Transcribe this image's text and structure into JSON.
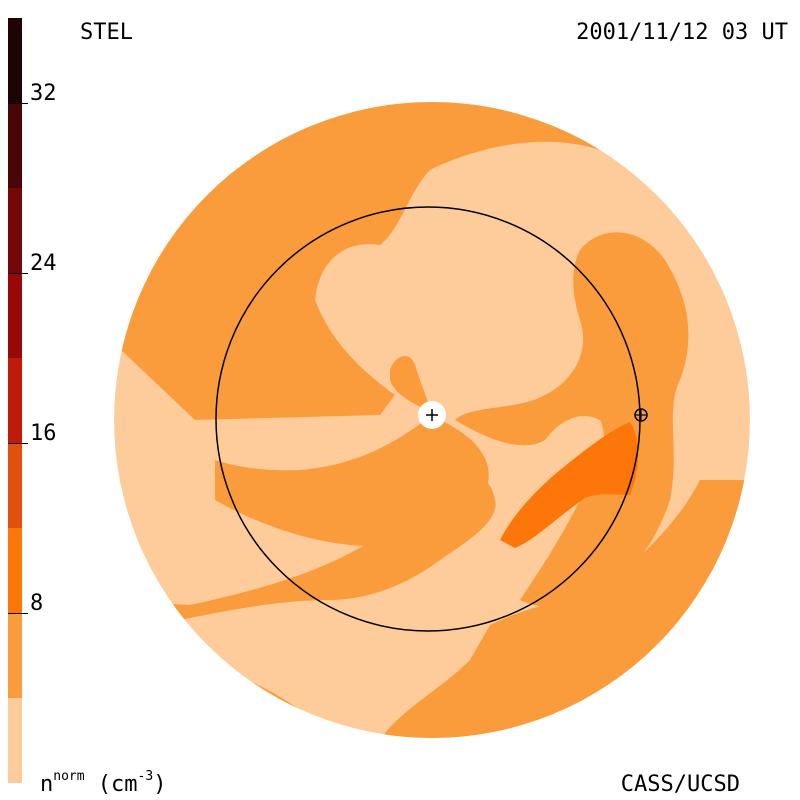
{
  "header": {
    "source": "STEL",
    "timestamp": "2001/11/12 03 UT"
  },
  "footer": {
    "unit_base": "n",
    "unit_sup": "norm",
    "unit_rest": " (cm",
    "unit_exp": "-3",
    "unit_close": ")",
    "credit": "CASS/UCSD"
  },
  "chart_data": {
    "type": "heatmap",
    "title": "",
    "colorbar": {
      "range": [
        0,
        36
      ],
      "ticks": [
        {
          "value": 8,
          "label": "8"
        },
        {
          "value": 16,
          "label": "16"
        },
        {
          "value": 24,
          "label": "24"
        },
        {
          "value": 32,
          "label": "32"
        }
      ],
      "levels": [
        {
          "from": 0,
          "to": 4,
          "color": "#fdcc9a"
        },
        {
          "from": 4,
          "to": 8,
          "color": "#fb9c3c"
        },
        {
          "from": 8,
          "to": 12,
          "color": "#fd760a"
        },
        {
          "from": 12,
          "to": 16,
          "color": "#e34f0c"
        },
        {
          "from": 16,
          "to": 20,
          "color": "#bf1a0a"
        },
        {
          "from": 20,
          "to": 24,
          "color": "#990808"
        },
        {
          "from": 24,
          "to": 28,
          "color": "#740808"
        },
        {
          "from": 28,
          "to": 32,
          "color": "#4a0606"
        },
        {
          "from": 32,
          "to": 36,
          "color": "#1e0404"
        }
      ]
    },
    "markers": [
      {
        "name": "Sun",
        "symbol": "+"
      },
      {
        "name": "Earth",
        "symbol": "⊕"
      }
    ],
    "reference_circle": "Earth orbit (1 AU)"
  }
}
